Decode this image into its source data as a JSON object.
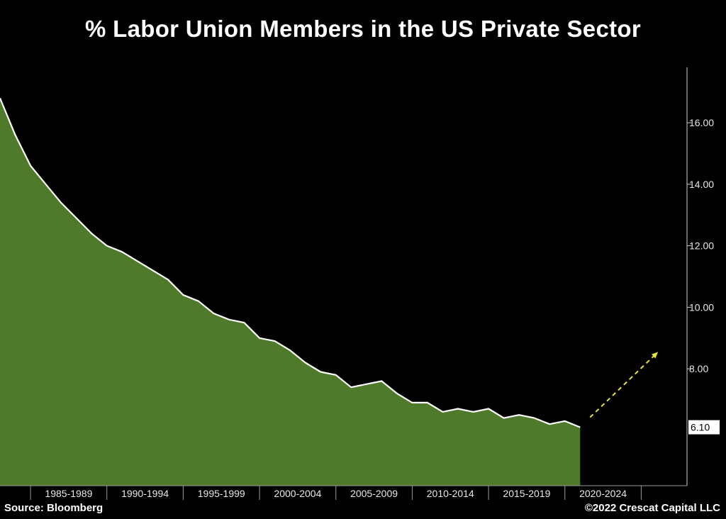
{
  "chart_data": {
    "type": "area",
    "title": "%  Labor Union Members in the US Private Sector",
    "xlabel": "",
    "ylabel": "",
    "x_tick_labels": [
      "1985-1989",
      "1990-1994",
      "1995-1999",
      "2000-2004",
      "2005-2009",
      "2010-2014",
      "2015-2019",
      "2020-2024"
    ],
    "y_ticks": [
      "16.00",
      "14.00",
      "12.00",
      "10.00",
      "8.00"
    ],
    "ylim": [
      4.2,
      17.8
    ],
    "xlim": [
      1983,
      2028
    ],
    "grid": false,
    "x": [
      1983,
      1984,
      1985,
      1986,
      1987,
      1988,
      1989,
      1990,
      1991,
      1992,
      1993,
      1994,
      1995,
      1996,
      1997,
      1998,
      1999,
      2000,
      2001,
      2002,
      2003,
      2004,
      2005,
      2006,
      2007,
      2008,
      2009,
      2010,
      2011,
      2012,
      2013,
      2014,
      2015,
      2016,
      2017,
      2018,
      2019,
      2020,
      2021
    ],
    "series": [
      {
        "values": [
          16.8,
          15.6,
          14.6,
          14.0,
          13.4,
          12.9,
          12.4,
          12.0,
          11.8,
          11.5,
          11.2,
          10.9,
          10.4,
          10.2,
          9.8,
          9.6,
          9.5,
          9.0,
          8.9,
          8.6,
          8.2,
          7.9,
          7.8,
          7.4,
          7.5,
          7.6,
          7.2,
          6.9,
          6.9,
          6.6,
          6.7,
          6.6,
          6.7,
          6.4,
          6.5,
          6.4,
          6.2,
          6.3,
          6.1
        ]
      }
    ],
    "last_value_label": "6.10",
    "annotation": "dashed yellow upward arrow",
    "colors": {
      "fill": "#4f7a2c",
      "line": "#ffffff",
      "arrow": "#e8e635",
      "background": "#000000"
    }
  },
  "footer": {
    "source": "Source: Bloomberg",
    "copyright": "©2022 Crescat Capital LLC"
  }
}
